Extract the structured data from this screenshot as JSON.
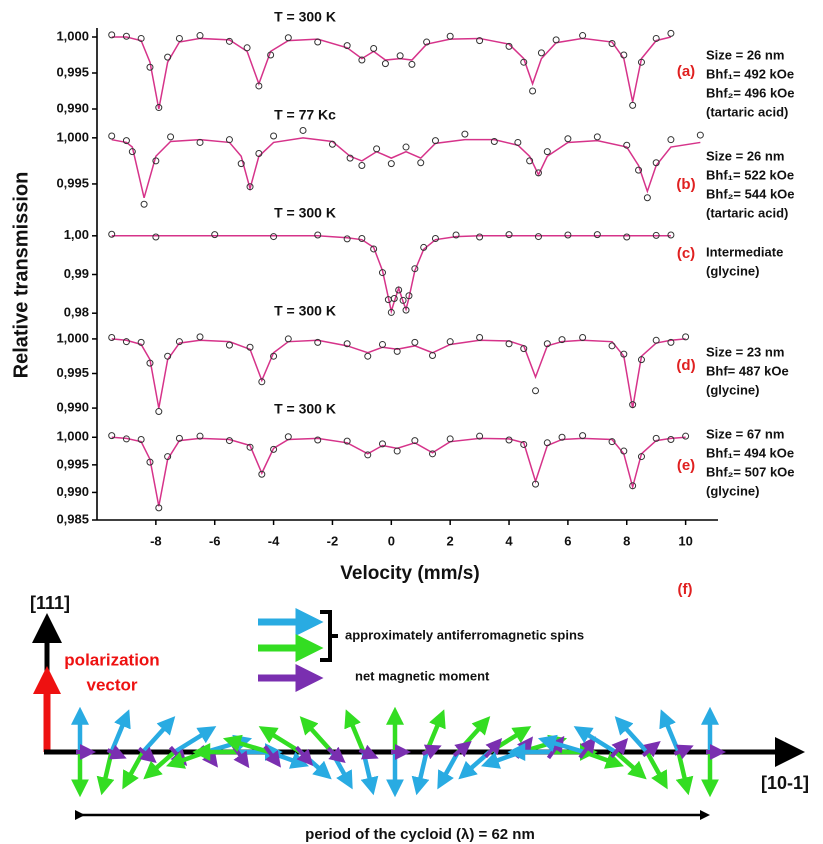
{
  "chart_data": [
    {
      "type": "line",
      "title": "T = 300 K",
      "label": "(a)",
      "notes": [
        "Size = 26 nm",
        "Bhf₁= 492 kOe",
        "Bhf₂= 496 kOe",
        "(tartaric acid)"
      ],
      "x": [
        -9.5,
        -9,
        -8.5,
        -8.2,
        -7.9,
        -7.6,
        -7.2,
        -6.5,
        -5.5,
        -4.9,
        -4.5,
        -4.1,
        -3.5,
        -2.5,
        -1.5,
        -1,
        -0.6,
        -0.2,
        0.3,
        0.7,
        1.2,
        2,
        3,
        4,
        4.5,
        4.8,
        5.1,
        5.6,
        6.5,
        7.5,
        7.9,
        8.2,
        8.5,
        9,
        9.5
      ],
      "series": [
        {
          "style": "line",
          "color": "#d6338a",
          "values": [
            1.0,
            1.0,
            0.9995,
            0.9965,
            0.99,
            0.9965,
            0.9993,
            0.9998,
            0.9996,
            0.998,
            0.9935,
            0.998,
            0.9995,
            0.9997,
            0.9985,
            0.997,
            0.998,
            0.9968,
            0.997,
            0.9968,
            0.999,
            0.9997,
            0.9998,
            0.999,
            0.997,
            0.9935,
            0.997,
            0.9992,
            0.9998,
            0.9993,
            0.997,
            0.991,
            0.997,
            0.9995,
            1.0
          ]
        },
        {
          "style": "circle",
          "color": "#333333",
          "values": [
            1.0003,
            1.0001,
            0.9998,
            0.9958,
            0.9902,
            0.9972,
            0.9998,
            1.0002,
            0.9994,
            0.9985,
            0.9932,
            0.9975,
            0.9999,
            0.9993,
            0.9988,
            0.9968,
            0.9984,
            0.9963,
            0.9974,
            0.9962,
            0.9993,
            1.0001,
            0.9995,
            0.9987,
            0.9965,
            0.9925,
            0.9978,
            0.9996,
            1.0002,
            0.9991,
            0.9975,
            0.9905,
            0.9965,
            0.9998,
            1.0005
          ]
        }
      ],
      "xlim": [
        -10,
        11.1
      ],
      "ylim": [
        0.989,
        1.001
      ],
      "yticks": [
        {
          "value": 1.0,
          "label": "1,000"
        },
        {
          "value": 0.995,
          "label": "0,995"
        },
        {
          "value": 0.99,
          "label": "0,990"
        }
      ]
    },
    {
      "type": "line",
      "title": "T = 77 Kc",
      "label": "(b)",
      "notes": [
        "Size = 26 nm",
        "Bhf₁= 522 kOe",
        "Bhf₂= 544 kOe",
        "(tartaric acid)"
      ],
      "x": [
        -9.5,
        -9,
        -8.8,
        -8.4,
        -8.0,
        -7.5,
        -6.5,
        -5.5,
        -5.1,
        -4.8,
        -4.5,
        -4,
        -3,
        -2,
        -1.4,
        -1,
        -0.5,
        0,
        0.5,
        1,
        1.5,
        2.5,
        3.5,
        4.3,
        4.7,
        5.0,
        5.3,
        6,
        7,
        8,
        8.4,
        8.7,
        9,
        9.5,
        10.5
      ],
      "series": [
        {
          "style": "line",
          "color": "#d6338a",
          "values": [
            0.9998,
            0.9995,
            0.999,
            0.9935,
            0.998,
            0.9996,
            0.9998,
            0.9995,
            0.998,
            0.9945,
            0.998,
            0.9995,
            1.0,
            0.9996,
            0.998,
            0.9975,
            0.9985,
            0.9978,
            0.9985,
            0.9978,
            0.9994,
            0.9998,
            0.9998,
            0.9992,
            0.998,
            0.996,
            0.998,
            0.9995,
            0.9997,
            0.999,
            0.997,
            0.9942,
            0.997,
            0.999,
            0.9995
          ]
        },
        {
          "style": "circle",
          "color": "#333333",
          "values": [
            1.0002,
            0.9997,
            0.9985,
            0.9928,
            0.9975,
            1.0001,
            0.9995,
            0.9998,
            0.9972,
            0.9947,
            0.9983,
            1.0002,
            1.0008,
            0.9993,
            0.9978,
            0.997,
            0.9988,
            0.9972,
            0.999,
            0.9973,
            0.9997,
            1.0004,
            0.9996,
            0.9995,
            0.9975,
            0.9962,
            0.9985,
            0.9999,
            1.0001,
            0.9992,
            0.9965,
            0.9935,
            0.9973,
            0.9998,
            1.0003
          ]
        }
      ],
      "xlim": [
        -10,
        11.1
      ],
      "ylim": [
        0.9925,
        1.0015
      ],
      "yticks": [
        {
          "value": 1.0,
          "label": "1,000"
        },
        {
          "value": 0.995,
          "label": "0,995"
        }
      ]
    },
    {
      "type": "line",
      "title": "T = 300 K",
      "label": "(c)",
      "notes": [
        "Intermediate",
        "(glycine)"
      ],
      "ylabel": "Relative transmission",
      "x": [
        -9.5,
        -8,
        -6,
        -4,
        -2.5,
        -1.5,
        -1,
        -0.6,
        -0.3,
        -0.1,
        0,
        0.1,
        0.25,
        0.4,
        0.5,
        0.6,
        0.8,
        1.1,
        1.5,
        2.2,
        3,
        4,
        5,
        6,
        7,
        8,
        9,
        9.5
      ],
      "series": [
        {
          "style": "line",
          "color": "#d6338a",
          "values": [
            1,
            1,
            1,
            1,
            1,
            0.9995,
            0.999,
            0.997,
            0.991,
            0.984,
            0.9805,
            0.983,
            0.9865,
            0.983,
            0.981,
            0.984,
            0.991,
            0.9965,
            0.999,
            0.9998,
            1,
            1,
            1,
            1,
            1,
            1,
            1,
            1
          ]
        },
        {
          "style": "circle",
          "color": "#333333",
          "values": [
            1.0004,
            0.9997,
            1.0003,
            0.9998,
            1.0002,
            0.9992,
            0.9993,
            0.9966,
            0.9905,
            0.9835,
            0.9802,
            0.9838,
            0.986,
            0.9833,
            0.9808,
            0.9845,
            0.9915,
            0.997,
            0.9993,
            1.0002,
            0.9997,
            1.0003,
            0.9998,
            1.0002,
            1.0003,
            0.9997,
            1.0001,
            1.0002
          ]
        }
      ],
      "xlim": [
        -10,
        11.1
      ],
      "ylim": [
        0.9785,
        1.0015
      ],
      "yticks": [
        {
          "value": 1.0,
          "label": "1,00"
        },
        {
          "value": 0.99,
          "label": "0,99"
        },
        {
          "value": 0.98,
          "label": "0,98"
        }
      ]
    },
    {
      "type": "line",
      "title": "T = 300 K",
      "label": "(d)",
      "notes": [
        "Size = 23 nm",
        "Bhf= 487 kOe",
        "(glycine)"
      ],
      "x": [
        -9.5,
        -9,
        -8.5,
        -8.2,
        -7.9,
        -7.6,
        -7.2,
        -6.5,
        -5.5,
        -4.8,
        -4.4,
        -4,
        -3.5,
        -2.5,
        -1.5,
        -0.8,
        -0.3,
        0.2,
        0.8,
        1.4,
        2,
        3,
        4,
        4.5,
        4.9,
        5.3,
        5.8,
        6.5,
        7.5,
        7.9,
        8.2,
        8.5,
        9,
        9.5,
        10
      ],
      "series": [
        {
          "style": "line",
          "color": "#d6338a",
          "values": [
            1.0,
            0.9998,
            0.9992,
            0.997,
            0.99,
            0.997,
            0.9994,
            0.9998,
            0.9996,
            0.9985,
            0.994,
            0.998,
            0.9996,
            0.9998,
            0.999,
            0.998,
            0.9988,
            0.9985,
            0.999,
            0.998,
            0.9992,
            0.9998,
            0.9997,
            0.999,
            0.9945,
            0.999,
            0.9996,
            0.9998,
            0.9996,
            0.9975,
            0.99,
            0.9975,
            0.9994,
            0.9998,
            1.0
          ]
        },
        {
          "style": "circle",
          "color": "#333333",
          "values": [
            1.0002,
            0.9996,
            0.9995,
            0.9965,
            0.9895,
            0.9975,
            0.9996,
            1.0003,
            0.9991,
            0.9988,
            0.9938,
            0.9975,
            1.0,
            0.9995,
            0.9993,
            0.9975,
            0.9992,
            0.9982,
            0.9995,
            0.9976,
            0.9996,
            1.0002,
            0.9993,
            0.9986,
            0.9925,
            0.9993,
            0.9999,
            1.0002,
            0.999,
            0.9978,
            0.9905,
            0.997,
            0.9998,
            0.9995,
            1.0003
          ]
        }
      ],
      "xlim": [
        -10,
        11.1
      ],
      "ylim": [
        0.989,
        1.001
      ],
      "yticks": [
        {
          "value": 1.0,
          "label": "1,000"
        },
        {
          "value": 0.995,
          "label": "0,995"
        },
        {
          "value": 0.99,
          "label": "0,990"
        }
      ]
    },
    {
      "type": "line",
      "title": "T = 300 K",
      "label": "(e)",
      "notes": [
        "Size = 67 nm",
        "Bhf₁= 494 kOe",
        "Bhf₂= 507 kOe",
        "(glycine)"
      ],
      "xlabel": "Velocity (mm/s)",
      "x": [
        -9.5,
        -9,
        -8.5,
        -8.2,
        -7.9,
        -7.6,
        -7.2,
        -6.5,
        -5.5,
        -4.8,
        -4.4,
        -4,
        -3.5,
        -2.5,
        -1.5,
        -0.8,
        -0.3,
        0.2,
        0.8,
        1.4,
        2,
        3,
        4,
        4.5,
        4.9,
        5.3,
        5.8,
        6.5,
        7.5,
        7.9,
        8.2,
        8.5,
        9,
        9.5,
        10
      ],
      "series": [
        {
          "style": "line",
          "color": "#d6338a",
          "values": [
            1.0,
            0.9998,
            0.9992,
            0.996,
            0.9875,
            0.996,
            0.9994,
            0.9998,
            0.9996,
            0.9985,
            0.9935,
            0.998,
            0.9996,
            0.9998,
            0.999,
            0.997,
            0.9985,
            0.998,
            0.999,
            0.9972,
            0.9992,
            0.9998,
            0.9997,
            0.999,
            0.992,
            0.9985,
            0.9996,
            0.9998,
            0.9996,
            0.997,
            0.991,
            0.997,
            0.9994,
            0.9998,
            1.0
          ]
        },
        {
          "style": "circle",
          "color": "#333333",
          "values": [
            1.0003,
            0.9997,
            0.9996,
            0.9955,
            0.9872,
            0.9965,
            0.9998,
            1.0002,
            0.9994,
            0.9982,
            0.9933,
            0.9978,
            1.0001,
            0.9995,
            0.9993,
            0.9968,
            0.9988,
            0.9975,
            0.9994,
            0.997,
            0.9997,
            1.0002,
            0.9995,
            0.9987,
            0.9915,
            0.999,
            1.0,
            1.0003,
            0.9992,
            0.9975,
            0.9912,
            0.9965,
            0.9998,
            0.9996,
            1.0002
          ]
        }
      ],
      "xlim": [
        -10,
        11.1
      ],
      "ylim": [
        0.985,
        1.0015
      ],
      "xticks": [
        -8,
        -6,
        -4,
        -2,
        0,
        2,
        4,
        6,
        8,
        10
      ],
      "yticks": [
        {
          "value": 1.0,
          "label": "1,000"
        },
        {
          "value": 0.995,
          "label": "0,995"
        },
        {
          "value": 0.99,
          "label": "0,990"
        },
        {
          "value": 0.985,
          "label": "0,985"
        }
      ]
    }
  ],
  "diagram": {
    "label": "(f)",
    "axis_up": "[111]",
    "polarization": [
      "polarization",
      "vector"
    ],
    "legend": [
      "approximately antiferromagnetic spins",
      "net magnetic moment"
    ],
    "axis_right": "[10-1]",
    "period": "period of the cycloid (λ) = 62 nm"
  }
}
